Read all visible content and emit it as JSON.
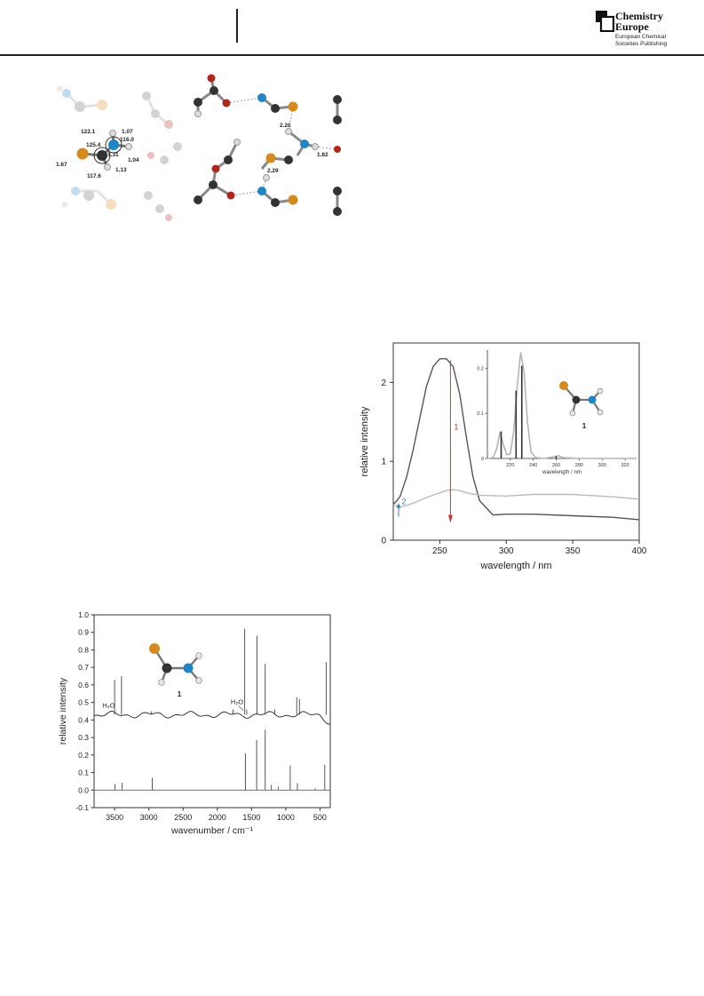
{
  "header": {
    "brand_line1": "Chemistry",
    "brand_line2": "Europe",
    "brand_sub1": "European Chemical",
    "brand_sub2": "Societies Publishing"
  },
  "structure_figure": {
    "labels": [
      "1.07",
      "122.1",
      "116.0",
      "125.4",
      "1.31",
      "1.04",
      "1.67",
      "117.6",
      "1.13",
      "2.26",
      "1.82",
      "2.29"
    ],
    "atom_colors": {
      "S": "#d68a1c",
      "N": "#1f86c8",
      "C": "#333333",
      "O": "#b3241d",
      "H": "#dcdcdc"
    }
  },
  "chart_data": [
    {
      "type": "line",
      "xlabel": "wavelength / nm",
      "ylabel": "relative intensity",
      "xlim": [
        215,
        400
      ],
      "ylim": [
        0,
        2.5
      ],
      "xticks": [
        250,
        300,
        350,
        400
      ],
      "yticks": [
        0,
        1,
        2
      ],
      "annotations": [
        {
          "text": "1",
          "color": "#c0392b",
          "x": 258,
          "y": 1.4
        },
        {
          "text": "2",
          "color": "#3a7cb8",
          "x": 220,
          "y": 0.47
        }
      ],
      "series": [
        {
          "color": "#555555",
          "x": [
            215,
            220,
            225,
            230,
            235,
            240,
            245,
            250,
            255,
            260,
            265,
            270,
            275,
            280,
            290,
            300,
            320,
            350,
            380,
            400
          ],
          "y": [
            0.45,
            0.55,
            0.8,
            1.15,
            1.55,
            1.95,
            2.2,
            2.3,
            2.3,
            2.2,
            1.85,
            1.3,
            0.8,
            0.5,
            0.32,
            0.33,
            0.33,
            0.31,
            0.29,
            0.26
          ]
        },
        {
          "color": "#bbbbbb",
          "x": [
            215,
            220,
            225,
            230,
            240,
            250,
            255,
            260,
            265,
            270,
            280,
            300,
            320,
            350,
            380,
            400
          ],
          "y": [
            0.45,
            0.42,
            0.44,
            0.47,
            0.54,
            0.6,
            0.63,
            0.64,
            0.63,
            0.6,
            0.57,
            0.56,
            0.58,
            0.58,
            0.55,
            0.52
          ]
        }
      ],
      "inset": {
        "type": "bar",
        "xlabel": "wavelength / nm",
        "xlim": [
          200,
          330
        ],
        "ylim": [
          0,
          0.24
        ],
        "xticks": [
          220,
          240,
          260,
          280,
          300,
          320
        ],
        "yticks": [
          0,
          0.1,
          0.2
        ],
        "ytick_labels": [
          "0",
          "0.1",
          "0.2"
        ],
        "stick_x": [
          212,
          225,
          230,
          260
        ],
        "stick_y": [
          0.06,
          0.15,
          0.205,
          0.005
        ],
        "curve_x": [
          200,
          205,
          208,
          211,
          214,
          217,
          220,
          223,
          226,
          229,
          232,
          235,
          238,
          242,
          250,
          258,
          262,
          266,
          280,
          330
        ],
        "curve_y": [
          0,
          0.002,
          0.02,
          0.058,
          0.03,
          0.008,
          0.01,
          0.06,
          0.16,
          0.235,
          0.19,
          0.08,
          0.015,
          0.002,
          0,
          0.004,
          0.006,
          0.002,
          0,
          0
        ]
      },
      "molecule_label": "1"
    },
    {
      "type": "line",
      "xlabel": "wavenumber / cm⁻¹",
      "ylabel": "relative intensity",
      "xlim": [
        3800,
        350
      ],
      "ylim": [
        -0.1,
        1.0
      ],
      "xticks": [
        3500,
        3000,
        2500,
        2000,
        1500,
        1000,
        500
      ],
      "yticks": [
        -0.1,
        0.0,
        0.1,
        0.2,
        0.3,
        0.4,
        0.5,
        0.6,
        0.7,
        0.8,
        0.9,
        1.0
      ],
      "ytick_labels": [
        "-0.1",
        "0.0",
        "0.1",
        "0.2",
        "0.3",
        "0.4",
        "0.5",
        "0.6",
        "0.7",
        "0.8",
        "0.9",
        "1.0"
      ],
      "annotations": [
        {
          "text": "H₂O",
          "x": 3680,
          "y": 0.47
        },
        {
          "text": "H₂O",
          "x": 1700,
          "y": 0.49
        }
      ],
      "molecule_label": "1",
      "experimental": {
        "baseline": 0.43,
        "peaks_x": [
          3500,
          3400,
          2960,
          1770,
          1600,
          1570,
          1420,
          1300,
          1160,
          840,
          800,
          410
        ],
        "peaks_y": [
          0.63,
          0.65,
          0.45,
          0.46,
          0.92,
          0.46,
          0.88,
          0.72,
          0.46,
          0.53,
          0.52,
          0.73
        ]
      },
      "calculated": {
        "sticks_x": [
          3495,
          3390,
          2950,
          1590,
          1425,
          1300,
          1210,
          1110,
          935,
          830,
          570,
          430
        ],
        "sticks_y": [
          0.035,
          0.042,
          0.07,
          0.21,
          0.285,
          0.345,
          0.03,
          0.02,
          0.14,
          0.04,
          0.01,
          0.145
        ]
      }
    }
  ]
}
